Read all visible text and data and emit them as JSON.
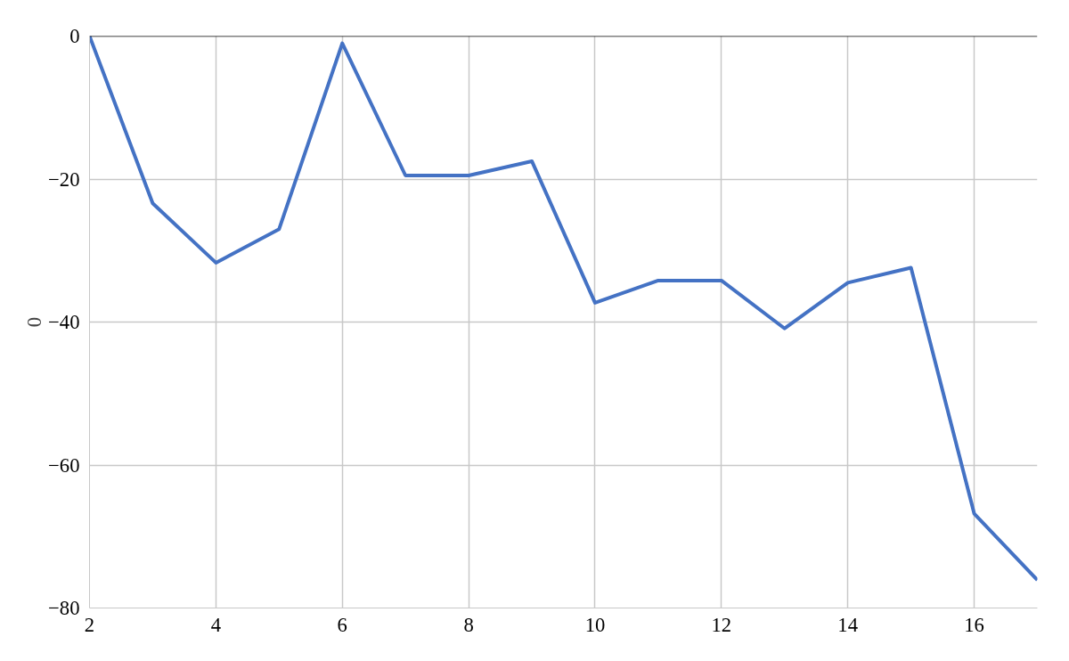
{
  "chart_data": {
    "type": "line",
    "ylabel": "0",
    "x": [
      2,
      3,
      4,
      5,
      6,
      7,
      8,
      9,
      10,
      11,
      12,
      13,
      14,
      15,
      16,
      17
    ],
    "series": [
      {
        "color": "#4472c4",
        "values": [
          0,
          -23.4,
          -31.7,
          -27,
          -1,
          -19.5,
          -19.5,
          -17.5,
          -37.3,
          -34.2,
          -34.2,
          -40.9,
          -34.5,
          -32.4,
          -66.8,
          -76.1
        ]
      }
    ],
    "xlim": [
      2,
      17
    ],
    "xticks": [
      2,
      4,
      6,
      8,
      10,
      12,
      14,
      16
    ],
    "ylim": [
      -80,
      0
    ],
    "yticks": [
      -80,
      -60,
      -40,
      -20,
      0
    ],
    "grid": true,
    "marker": "none",
    "line_style": "solid"
  }
}
